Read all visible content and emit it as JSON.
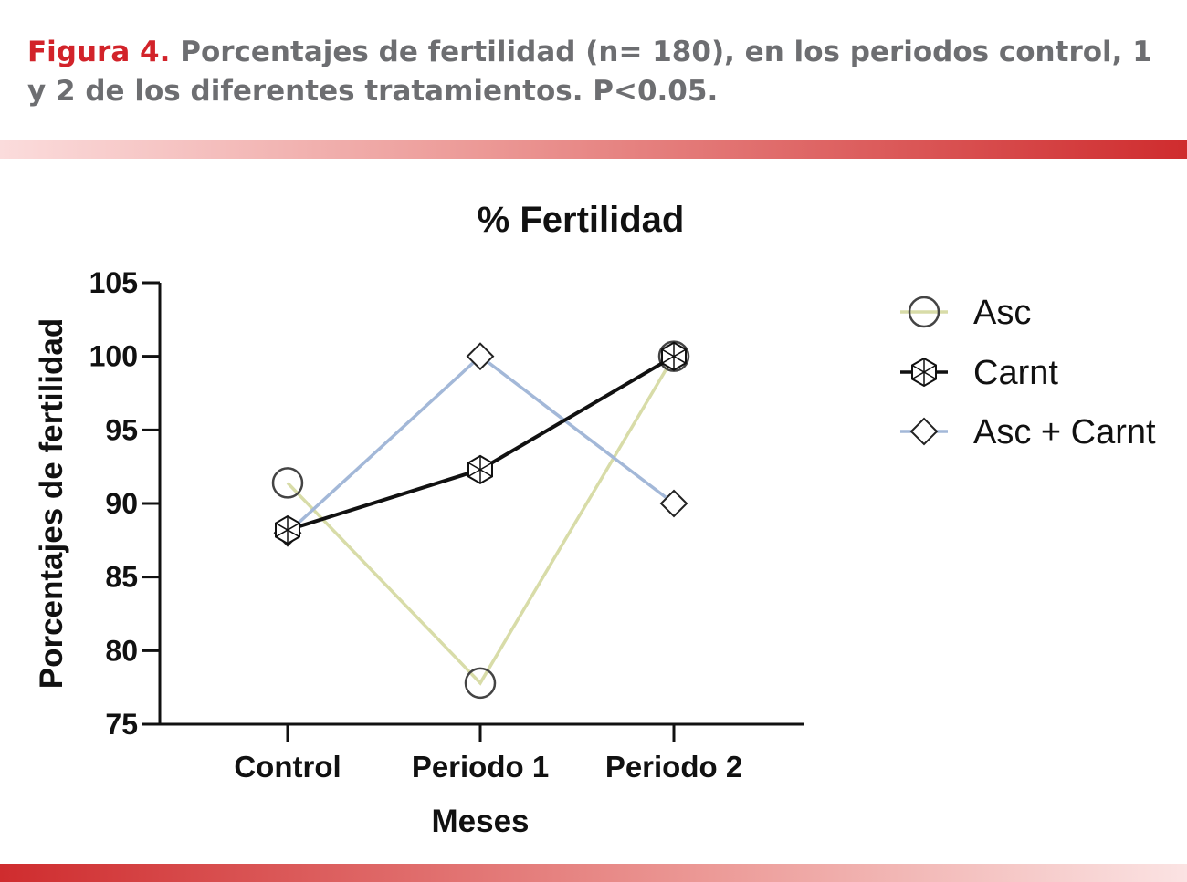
{
  "caption": {
    "label": "Figura 4.",
    "text": "Porcentajes de fertilidad (n= 180), en los periodos control, 1 y 2 de los diferentes tratamientos. P<0.05."
  },
  "chart_data": {
    "type": "line",
    "title": "% Fertilidad",
    "xlabel": "Meses",
    "ylabel": "Porcentajes de fertilidad",
    "categories": [
      "Control",
      "Periodo 1",
      "Periodo 2"
    ],
    "ylim": [
      75,
      105
    ],
    "yticks": [
      75,
      80,
      85,
      90,
      95,
      100,
      105
    ],
    "grid": false,
    "legend_position": "right",
    "series": [
      {
        "name": "Asc",
        "values": [
          91.4,
          77.8,
          100
        ],
        "color": "#d8dca8",
        "marker": "circle"
      },
      {
        "name": "Carnt",
        "values": [
          88.2,
          92.3,
          100
        ],
        "color": "#111111",
        "marker": "hexagon"
      },
      {
        "name": "Asc + Carnt",
        "values": [
          88.0,
          100,
          90
        ],
        "color": "#a3b8d8",
        "marker": "diamond"
      }
    ]
  }
}
